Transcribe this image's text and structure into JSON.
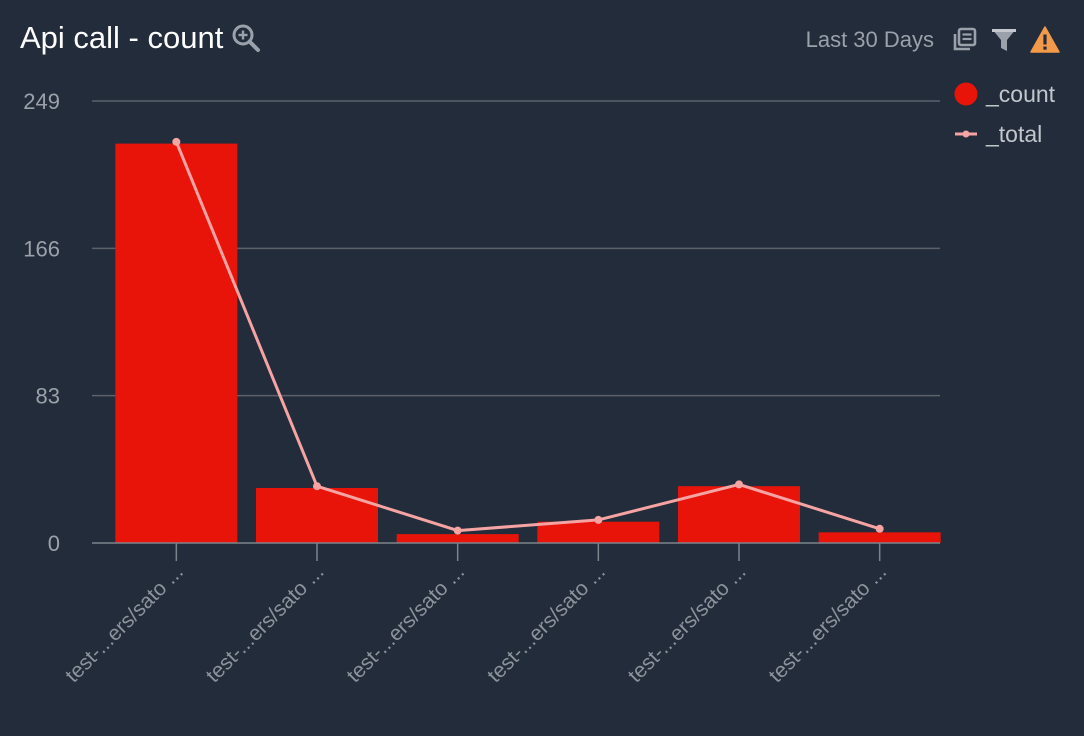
{
  "header": {
    "title": "Api call - count",
    "zoom_icon": "zoom-in-icon"
  },
  "toolbar": {
    "range_label": "Last 30 Days",
    "icons": [
      "copy-icon",
      "filter-icon",
      "warning-icon"
    ],
    "warning_color": "#f39a4a",
    "icon_color": "#9aa1ab"
  },
  "legend": {
    "items": [
      {
        "label": "_count",
        "marker": "circle",
        "color": "#e8140a"
      },
      {
        "label": "_total",
        "marker": "line-dot",
        "color": "#f5a3a3"
      }
    ]
  },
  "chart_data": {
    "type": "bar",
    "categories": [
      "test-...ers/sato ...",
      "test-...ers/sato ...",
      "test-...ers/sato ...",
      "test-...ers/sato ...",
      "test-...ers/sato ...",
      "test-...ers/sato ..."
    ],
    "series": [
      {
        "name": "_count",
        "type": "bar",
        "color": "#e8140a",
        "values": [
          225,
          31,
          5,
          12,
          32,
          6
        ]
      },
      {
        "name": "_total",
        "type": "line",
        "color": "#f5a3a3",
        "values": [
          226,
          32,
          7,
          13,
          33,
          8
        ]
      }
    ],
    "yticks": [
      0,
      83,
      166,
      249
    ],
    "ylim": [
      0,
      249
    ],
    "title": "Api call - count",
    "xlabel": "",
    "ylabel": "",
    "grid": true,
    "legend_position": "top-right"
  }
}
